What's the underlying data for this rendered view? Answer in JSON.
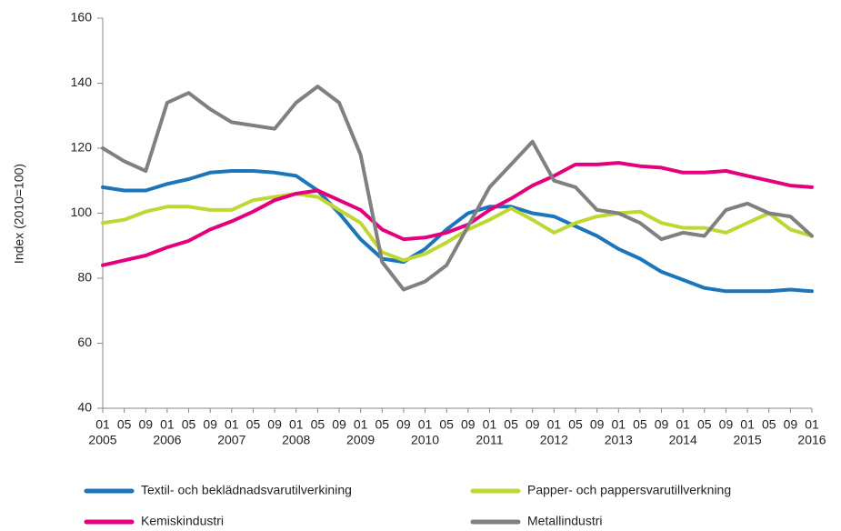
{
  "chart_data": {
    "type": "line",
    "y_label": "Index (2010=100)",
    "categories": [
      "01",
      "05",
      "09",
      "01",
      "05",
      "09",
      "01",
      "05",
      "09",
      "01",
      "05",
      "09",
      "01",
      "05",
      "09",
      "01",
      "05",
      "09",
      "01",
      "05",
      "09",
      "01",
      "05",
      "09",
      "01",
      "05",
      "09",
      "01",
      "05",
      "09",
      "01",
      "05",
      "09",
      "01"
    ],
    "years": [
      "2005",
      "2006",
      "2007",
      "2008",
      "2009",
      "2010",
      "2011",
      "2012",
      "2013",
      "2014",
      "2015",
      "2016"
    ],
    "ylim": [
      40,
      160
    ],
    "yticks": [
      40,
      60,
      80,
      100,
      120,
      140,
      160
    ],
    "grid": false,
    "series": [
      {
        "name": "Textil- och beklädnadsvarutilverkining",
        "color": "#1a75bb",
        "values": [
          108,
          107,
          107,
          109,
          110.5,
          112.5,
          113,
          113,
          112.5,
          111.5,
          107,
          100,
          92,
          86,
          85,
          89,
          95,
          100,
          102,
          102,
          100,
          99,
          96,
          93,
          89,
          86,
          82,
          79.5,
          77,
          76,
          76,
          76,
          76.5,
          76
        ]
      },
      {
        "name": "Papper- och pappersvarutillverkning",
        "color": "#bfd730",
        "values": [
          97,
          98,
          100.5,
          102,
          102,
          101,
          101,
          104,
          105,
          106,
          105,
          101,
          97,
          88,
          85.5,
          87.5,
          91,
          95,
          98,
          101.5,
          98,
          94,
          97,
          99,
          100,
          100.5,
          97,
          95.5,
          95.5,
          94,
          97,
          100,
          95,
          93
        ]
      },
      {
        "name": "Kemiskindustri",
        "color": "#e4007c",
        "values": [
          84,
          85.5,
          87,
          89.5,
          91.5,
          95,
          97.5,
          100.5,
          104,
          106,
          107,
          104,
          101,
          95,
          92,
          92.5,
          94,
          96.5,
          101,
          104.5,
          108.5,
          111.5,
          115,
          115,
          115.5,
          114.5,
          114,
          112.5,
          112.5,
          113,
          111.5,
          110,
          108.5,
          108
        ]
      },
      {
        "name": "Metallindustri",
        "color": "#808080",
        "values": [
          120,
          116,
          113,
          134,
          137,
          132,
          128,
          127,
          126,
          134,
          139,
          134,
          118,
          85,
          76.5,
          79,
          84,
          96,
          108,
          115,
          122,
          110,
          108,
          101,
          100,
          97,
          92,
          94,
          93,
          101,
          103,
          100,
          99,
          93
        ]
      }
    ]
  }
}
